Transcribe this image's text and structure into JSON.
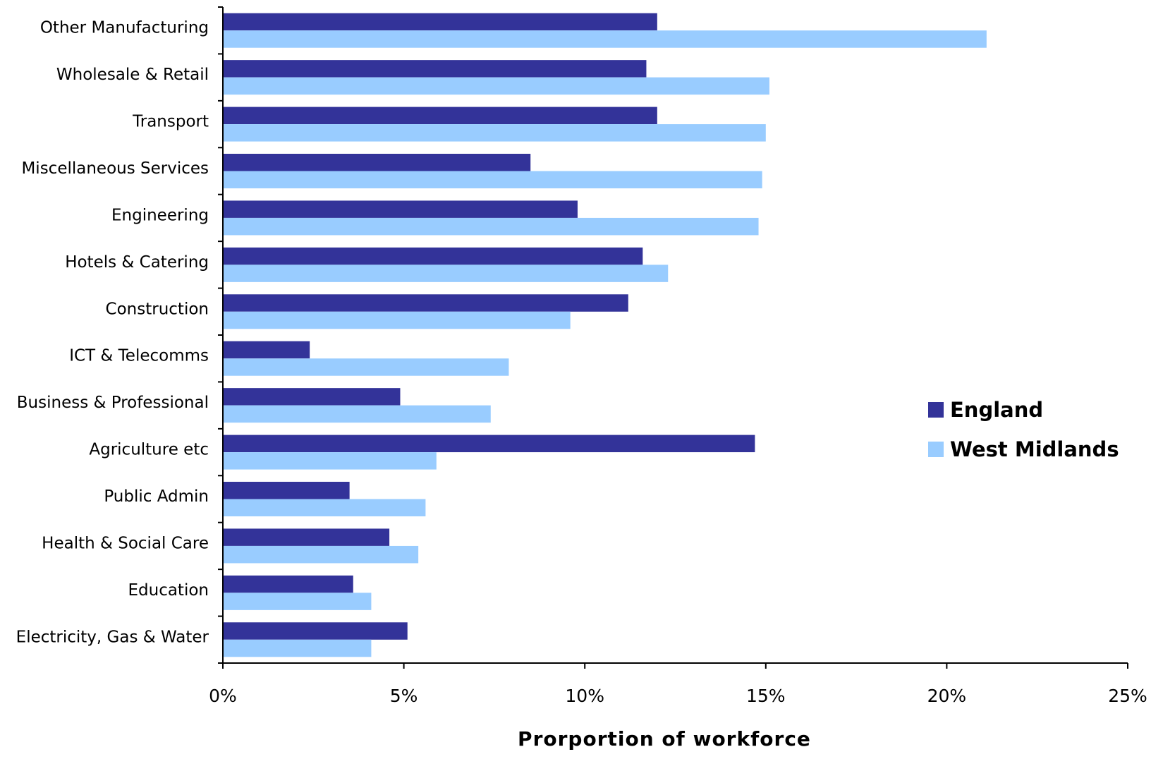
{
  "chart_data": {
    "type": "bar",
    "orientation": "horizontal",
    "categories": [
      "Other Manufacturing",
      "Wholesale & Retail",
      "Transport",
      "Miscellaneous Services",
      "Engineering",
      "Hotels & Catering",
      "Construction",
      "ICT & Telecomms",
      "Business & Professional",
      "Agriculture etc",
      "Public Admin",
      "Health & Social Care",
      "Education",
      "Electricity, Gas & Water"
    ],
    "series": [
      {
        "name": "England",
        "color": "#333399",
        "values": [
          12.0,
          11.7,
          12.0,
          8.5,
          9.8,
          11.6,
          11.2,
          2.4,
          4.9,
          14.7,
          3.5,
          4.6,
          3.6,
          5.1
        ]
      },
      {
        "name": "West Midlands",
        "color": "#99CCFF",
        "values": [
          21.1,
          15.1,
          15.0,
          14.9,
          14.8,
          12.3,
          9.6,
          7.9,
          7.4,
          5.9,
          5.6,
          5.4,
          4.1,
          4.1
        ]
      }
    ],
    "xlim": [
      0,
      25
    ],
    "xticks": [
      "0%",
      "5%",
      "10%",
      "15%",
      "20%",
      "25%"
    ],
    "xlabel": "Prorportion of workforce",
    "ylabel": "",
    "title": "",
    "grid": false,
    "legend_position": "right"
  }
}
